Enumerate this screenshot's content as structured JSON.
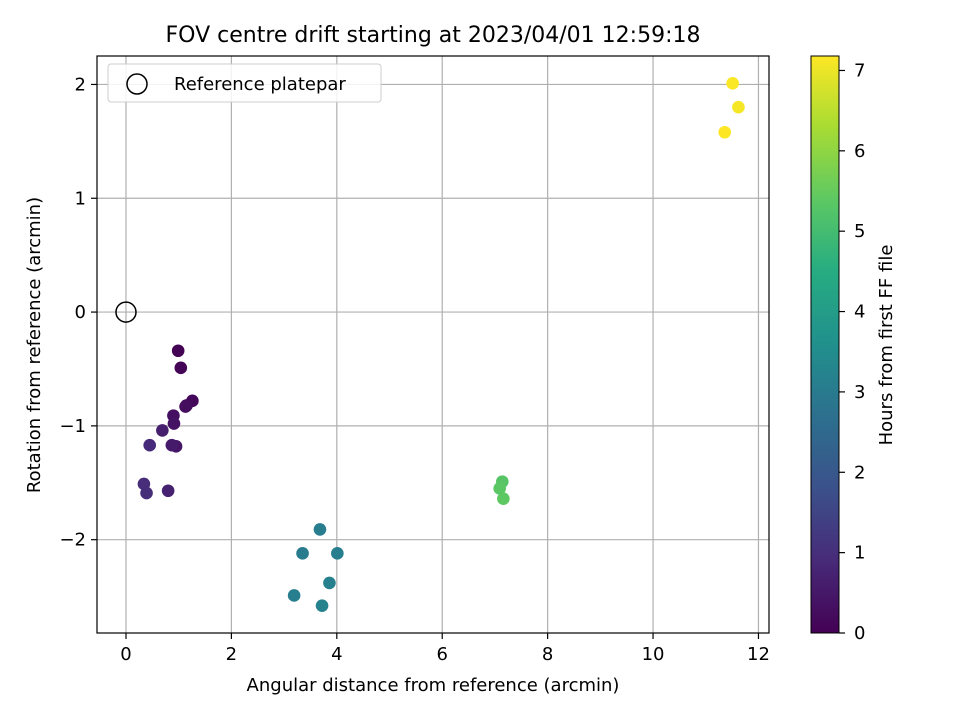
{
  "chart_data": {
    "type": "scatter",
    "title": "FOV centre drift starting at 2023/04/01 12:59:18",
    "xlabel": "Angular distance from reference (arcmin)",
    "ylabel": "Rotation from reference (arcmin)",
    "xlim": [
      -0.55,
      12.2
    ],
    "ylim": [
      -2.82,
      2.25
    ],
    "xticks": [
      0,
      2,
      4,
      6,
      8,
      10,
      12
    ],
    "yticks": [
      -2,
      -1,
      0,
      1,
      2
    ],
    "grid": true,
    "legend": {
      "position": "top-left",
      "entries": [
        "Reference platepar"
      ]
    },
    "reference_point": {
      "x": 0,
      "y": 0
    },
    "colorbar": {
      "label": "Hours from first FF file",
      "range": [
        0,
        7.18
      ],
      "ticks": [
        0,
        1,
        2,
        3,
        4,
        5,
        6,
        7
      ],
      "colormap": "viridis"
    },
    "points": [
      {
        "x": 0.99,
        "y": -0.34,
        "hours": 0.02
      },
      {
        "x": 1.04,
        "y": -0.49,
        "hours": 0.08
      },
      {
        "x": 1.26,
        "y": -0.78,
        "hours": 0.15
      },
      {
        "x": 1.15,
        "y": -0.82,
        "hours": 0.2
      },
      {
        "x": 1.13,
        "y": -0.83,
        "hours": 0.25
      },
      {
        "x": 0.9,
        "y": -0.91,
        "hours": 0.32
      },
      {
        "x": 0.91,
        "y": -0.98,
        "hours": 0.4
      },
      {
        "x": 0.95,
        "y": -1.18,
        "hours": 0.45
      },
      {
        "x": 0.87,
        "y": -1.17,
        "hours": 0.55
      },
      {
        "x": 0.69,
        "y": -1.04,
        "hours": 0.65
      },
      {
        "x": 0.45,
        "y": -1.17,
        "hours": 0.9
      },
      {
        "x": 0.8,
        "y": -1.57,
        "hours": 0.7
      },
      {
        "x": 0.34,
        "y": -1.51,
        "hours": 0.95
      },
      {
        "x": 0.39,
        "y": -1.59,
        "hours": 0.98
      },
      {
        "x": 3.68,
        "y": -1.91,
        "hours": 3.05
      },
      {
        "x": 3.35,
        "y": -2.12,
        "hours": 3.0
      },
      {
        "x": 4.01,
        "y": -2.12,
        "hours": 3.1
      },
      {
        "x": 3.86,
        "y": -2.38,
        "hours": 3.15
      },
      {
        "x": 3.19,
        "y": -2.49,
        "hours": 3.1
      },
      {
        "x": 3.72,
        "y": -2.58,
        "hours": 3.2
      },
      {
        "x": 7.14,
        "y": -1.49,
        "hours": 5.3
      },
      {
        "x": 7.09,
        "y": -1.55,
        "hours": 5.35
      },
      {
        "x": 7.16,
        "y": -1.64,
        "hours": 5.4
      },
      {
        "x": 11.51,
        "y": 2.01,
        "hours": 7.15
      },
      {
        "x": 11.62,
        "y": 1.8,
        "hours": 7.1
      },
      {
        "x": 11.36,
        "y": 1.58,
        "hours": 7.18
      }
    ]
  }
}
